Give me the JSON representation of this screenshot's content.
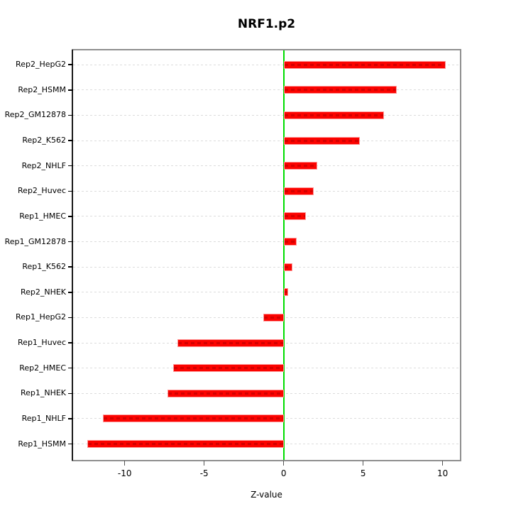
{
  "title": "NRF1.p2",
  "chart_data": {
    "type": "bar",
    "orientation": "horizontal",
    "title": "NRF1.p2",
    "xlabel": "Z-value",
    "ylabel": "",
    "categories": [
      "Rep2_HepG2",
      "Rep2_HSMM",
      "Rep2_GM12878",
      "Rep2_K562",
      "Rep2_NHLF",
      "Rep2_Huvec",
      "Rep1_HMEC",
      "Rep1_GM12878",
      "Rep1_K562",
      "Rep2_NHEK",
      "Rep1_HepG2",
      "Rep1_Huvec",
      "Rep2_HMEC",
      "Rep1_NHEK",
      "Rep1_NHLF",
      "Rep1_HSMM"
    ],
    "values": [
      10.2,
      7.1,
      6.3,
      4.8,
      2.1,
      1.9,
      1.4,
      0.8,
      0.55,
      0.3,
      -1.26,
      -6.7,
      -6.96,
      -7.3,
      -11.35,
      -12.34
    ],
    "xticks": [
      -10,
      -5,
      0,
      5,
      10
    ],
    "xtick_labels": [
      "-10",
      "-5",
      "0",
      "5",
      "10"
    ],
    "xlim": [
      -13.25,
      11.1
    ],
    "grid": true,
    "zero_line_x": 0,
    "legend": null,
    "colors": {
      "bar_fill": "#fb0300",
      "bar_border": "#ff9898",
      "bar_dash": "#d40000",
      "zero_line": "#00dd00",
      "grid_line": "#dcdcdc",
      "box_border": "#8f8f8f",
      "axis_line": "#000000",
      "text": "#000000"
    }
  }
}
